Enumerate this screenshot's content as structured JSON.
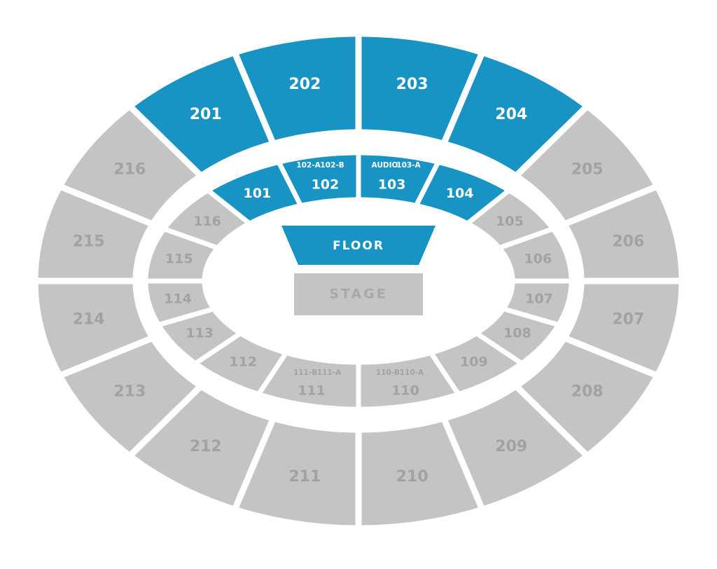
{
  "upper_level": [
    {
      "label": "201",
      "color": "#1793c4",
      "text_color": "#ffffff"
    },
    {
      "label": "202",
      "color": "#1793c4",
      "text_color": "#ffffff"
    },
    {
      "label": "203",
      "color": "#1793c4",
      "text_color": "#ffffff"
    },
    {
      "label": "204",
      "color": "#1793c4",
      "text_color": "#ffffff"
    },
    {
      "label": "205",
      "color": "#c4c4c4",
      "text_color": "#a2a2a2"
    },
    {
      "label": "206",
      "color": "#c4c4c4",
      "text_color": "#a2a2a2"
    },
    {
      "label": "207",
      "color": "#c4c4c4",
      "text_color": "#a2a2a2"
    },
    {
      "label": "208",
      "color": "#c4c4c4",
      "text_color": "#a2a2a2"
    },
    {
      "label": "209",
      "color": "#c4c4c4",
      "text_color": "#a2a2a2"
    },
    {
      "label": "210",
      "color": "#c4c4c4",
      "text_color": "#a2a2a2"
    },
    {
      "label": "211",
      "color": "#c4c4c4",
      "text_color": "#a2a2a2"
    },
    {
      "label": "212",
      "color": "#c4c4c4",
      "text_color": "#a2a2a2"
    },
    {
      "label": "213",
      "color": "#c4c4c4",
      "text_color": "#a2a2a2"
    },
    {
      "label": "214",
      "color": "#c4c4c4",
      "text_color": "#a2a2a2"
    },
    {
      "label": "215",
      "color": "#c4c4c4",
      "text_color": "#a2a2a2"
    },
    {
      "label": "216",
      "color": "#c4c4c4",
      "text_color": "#a2a2a2"
    }
  ],
  "lower_level": [
    {
      "label": "101",
      "color": "#1793c4",
      "text_color": "#ffffff"
    },
    {
      "label": "102",
      "color": "#1793c4",
      "text_color": "#ffffff",
      "sublabels": [
        "102-A",
        "102-B"
      ]
    },
    {
      "label": "103",
      "color": "#1793c4",
      "text_color": "#ffffff",
      "sublabels": [
        "AUDIO",
        "103-A"
      ]
    },
    {
      "label": "104",
      "color": "#1793c4",
      "text_color": "#ffffff"
    },
    {
      "label": "105",
      "color": "#c4c4c4",
      "text_color": "#a2a2a2"
    },
    {
      "label": "106",
      "color": "#c4c4c4",
      "text_color": "#a2a2a2"
    },
    {
      "label": "107",
      "color": "#c4c4c4",
      "text_color": "#a2a2a2"
    },
    {
      "label": "108",
      "color": "#c4c4c4",
      "text_color": "#a2a2a2"
    },
    {
      "label": "109",
      "color": "#c4c4c4",
      "text_color": "#a2a2a2"
    },
    {
      "label": "110",
      "color": "#c4c4c4",
      "text_color": "#a2a2a2",
      "sublabels": [
        "110-B",
        "110-A"
      ]
    },
    {
      "label": "111",
      "color": "#c4c4c4",
      "text_color": "#a2a2a2",
      "sublabels": [
        "111-B",
        "111-A"
      ]
    },
    {
      "label": "112",
      "color": "#c4c4c4",
      "text_color": "#a2a2a2"
    },
    {
      "label": "113",
      "color": "#c4c4c4",
      "text_color": "#a2a2a2"
    },
    {
      "label": "114",
      "color": "#c4c4c4",
      "text_color": "#a2a2a2"
    },
    {
      "label": "115",
      "color": "#c4c4c4",
      "text_color": "#a2a2a2"
    },
    {
      "label": "116",
      "color": "#c4c4c4",
      "text_color": "#a2a2a2"
    }
  ],
  "floor": {
    "label": "FLOOR",
    "color": "#1793c4",
    "text_color": "#ffffff"
  },
  "stage": {
    "label": "STAGE",
    "color": "#c4c4c4",
    "text_color": "#a8a8a8"
  }
}
